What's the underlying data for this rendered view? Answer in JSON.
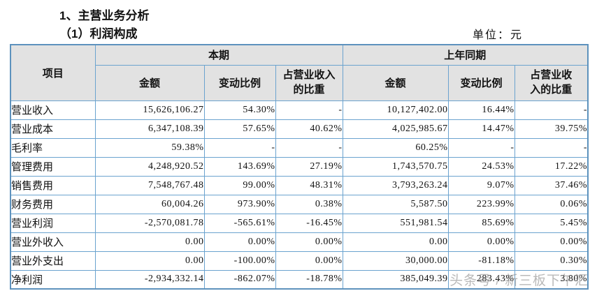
{
  "page": {
    "title1": "1、主营业务分析",
    "title2": "（1）利润构成",
    "unit_label": "单位：元"
  },
  "table": {
    "col_item": "项目",
    "group_current": "本期",
    "group_prior": "上年同期",
    "sub_headers": {
      "amount_current": "金额",
      "change_current": "变动比例",
      "share_current": "占营业收入\n的比重",
      "amount_prior": "金额",
      "change_prior": "变动比例",
      "share_prior": "占营业收\n入的比重"
    },
    "rows": [
      {
        "item": "营业收入",
        "cells": [
          "15,626,106.27",
          "54.30%",
          "-",
          "10,127,402.00",
          "16.44%",
          "-"
        ]
      },
      {
        "item": "营业成本",
        "cells": [
          "6,347,108.39",
          "57.65%",
          "40.62%",
          "4,025,985.67",
          "14.47%",
          "39.75%"
        ]
      },
      {
        "item": "毛利率",
        "cells": [
          "59.38%",
          "-",
          "-",
          "60.25%",
          "-",
          "-"
        ]
      },
      {
        "item": "管理费用",
        "cells": [
          "4,248,920.52",
          "143.69%",
          "27.19%",
          "1,743,570.75",
          "24.53%",
          "17.22%"
        ]
      },
      {
        "item": "销售费用",
        "cells": [
          "7,548,767.48",
          "99.00%",
          "48.31%",
          "3,793,263.24",
          "9.07%",
          "37.46%"
        ]
      },
      {
        "item": "财务费用",
        "cells": [
          "60,004.26",
          "973.90%",
          "0.38%",
          "5,587.50",
          "223.99%",
          "0.06%"
        ]
      },
      {
        "item": "营业利润",
        "cells": [
          "-2,570,081.78",
          "-565.61%",
          "-16.45%",
          "551,981.54",
          "85.69%",
          "5.45%"
        ]
      },
      {
        "item": "营业外收入",
        "cells": [
          "0.00",
          "0.00%",
          "0.00%",
          "0.00",
          "0.00%",
          "0.00%"
        ]
      },
      {
        "item": "营业外支出",
        "cells": [
          "0.00",
          "-100.00%",
          "0.00%",
          "30,000.00",
          "-81.18%",
          "0.30%"
        ]
      },
      {
        "item": "净利润",
        "cells": [
          "-2,934,332.14",
          "-862.07%",
          "-18.78%",
          "385,049.39",
          "283.43%",
          "3.80%"
        ]
      }
    ]
  },
  "watermark": "头条号 / 新三板下午汇",
  "colors": {
    "border_inner": "#6ba3cf",
    "border_outer": "#5d92bd",
    "header_bg": "#e2e2e2",
    "watermark_gray": "#8f8f8f"
  }
}
